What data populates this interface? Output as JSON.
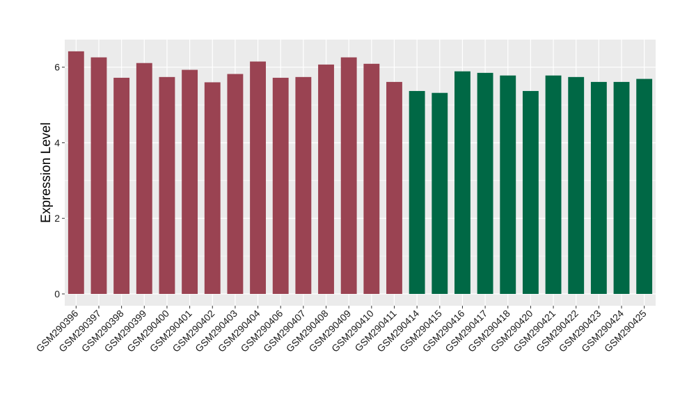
{
  "chart_data": {
    "type": "bar",
    "ylabel": "Expression Level",
    "xlabel": "",
    "ylim": [
      -0.3,
      6.75
    ],
    "yticks": [
      0,
      2,
      4,
      6
    ],
    "grid": true,
    "categories": [
      "GSM290396",
      "GSM290397",
      "GSM290398",
      "GSM290399",
      "GSM290400",
      "GSM290401",
      "GSM290402",
      "GSM290403",
      "GSM290404",
      "GSM290406",
      "GSM290407",
      "GSM290408",
      "GSM290409",
      "GSM290410",
      "GSM290411",
      "GSM290414",
      "GSM290415",
      "GSM290416",
      "GSM290417",
      "GSM290418",
      "GSM290420",
      "GSM290421",
      "GSM290422",
      "GSM290423",
      "GSM290424",
      "GSM290425"
    ],
    "values": [
      6.42,
      6.26,
      5.72,
      6.11,
      5.74,
      5.93,
      5.6,
      5.82,
      6.15,
      5.72,
      5.74,
      6.07,
      6.26,
      6.09,
      5.61,
      5.37,
      5.32,
      5.89,
      5.85,
      5.78,
      5.37,
      5.78,
      5.74,
      5.61,
      5.61,
      5.69
    ],
    "group_colors": [
      "#9A4352",
      "#9A4352",
      "#9A4352",
      "#9A4352",
      "#9A4352",
      "#9A4352",
      "#9A4352",
      "#9A4352",
      "#9A4352",
      "#9A4352",
      "#9A4352",
      "#9A4352",
      "#9A4352",
      "#9A4352",
      "#9A4352",
      "#006845",
      "#006845",
      "#006845",
      "#006845",
      "#006845",
      "#006845",
      "#006845",
      "#006845",
      "#006845",
      "#006845",
      "#006845"
    ],
    "panel_background": "#EBEBEB"
  }
}
